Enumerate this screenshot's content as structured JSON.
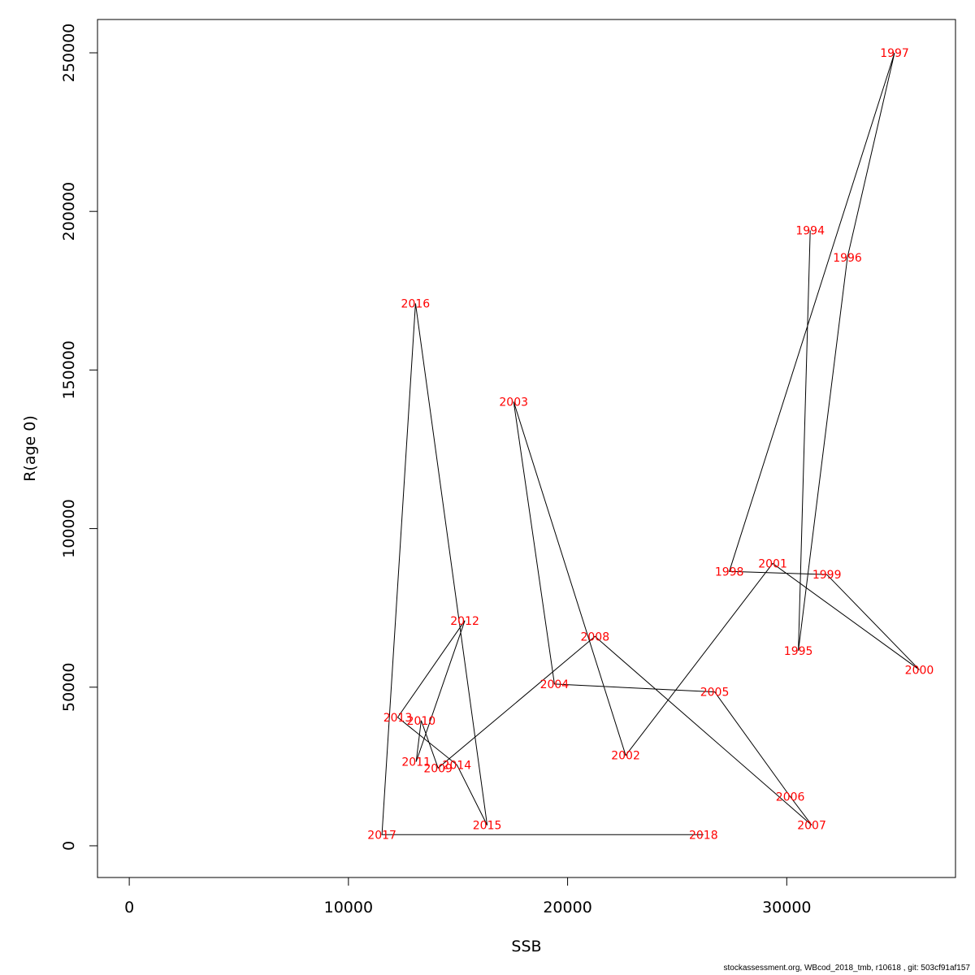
{
  "chart_data": {
    "type": "line",
    "title": "",
    "xlabel": "SSB",
    "ylabel": "R(age 0)",
    "xlim": [
      -1450,
      37700
    ],
    "ylim": [
      -10000,
      260500
    ],
    "x_ticks": [
      0,
      10000,
      20000,
      30000
    ],
    "x_tick_labels": [
      "0",
      "10000",
      "20000",
      "30000"
    ],
    "y_ticks": [
      0,
      50000,
      100000,
      150000,
      200000,
      250000
    ],
    "y_tick_labels": [
      "0",
      "50000",
      "100000",
      "150000",
      "200000",
      "250000"
    ],
    "grid": false,
    "legend": "none",
    "line_color": "#000000",
    "label_color": "#ff0000",
    "series": [
      {
        "points": [
          {
            "label": "1994",
            "x": 31070,
            "y": 194000
          },
          {
            "label": "1995",
            "x": 30530,
            "y": 61500
          },
          {
            "label": "1996",
            "x": 32770,
            "y": 185500
          },
          {
            "label": "1997",
            "x": 34920,
            "y": 250000
          },
          {
            "label": "1998",
            "x": 27380,
            "y": 86500
          },
          {
            "label": "1999",
            "x": 31830,
            "y": 85500
          },
          {
            "label": "2000",
            "x": 36050,
            "y": 55500
          },
          {
            "label": "2001",
            "x": 29360,
            "y": 89000
          },
          {
            "label": "2002",
            "x": 22650,
            "y": 28500
          },
          {
            "label": "2003",
            "x": 17540,
            "y": 140000
          },
          {
            "label": "2004",
            "x": 19400,
            "y": 51000
          },
          {
            "label": "2005",
            "x": 26710,
            "y": 48500
          },
          {
            "label": "2006",
            "x": 30160,
            "y": 15500
          },
          {
            "label": "2007",
            "x": 31140,
            "y": 6500
          },
          {
            "label": "2008",
            "x": 21250,
            "y": 66000
          },
          {
            "label": "2009",
            "x": 14090,
            "y": 24500
          },
          {
            "label": "2010",
            "x": 13320,
            "y": 39500
          },
          {
            "label": "2011",
            "x": 13090,
            "y": 26500
          },
          {
            "label": "2012",
            "x": 15310,
            "y": 71000
          },
          {
            "label": "2013",
            "x": 12250,
            "y": 40500
          },
          {
            "label": "2014",
            "x": 14950,
            "y": 25500
          },
          {
            "label": "2015",
            "x": 16330,
            "y": 6500
          },
          {
            "label": "2016",
            "x": 13060,
            "y": 171000
          },
          {
            "label": "2017",
            "x": 11530,
            "y": 3500
          },
          {
            "label": "2018",
            "x": 26200,
            "y": 3500
          }
        ]
      }
    ]
  },
  "footer": "stockassessment.org, WBcod_2018_tmb, r10618 , git: 503cf91af157"
}
